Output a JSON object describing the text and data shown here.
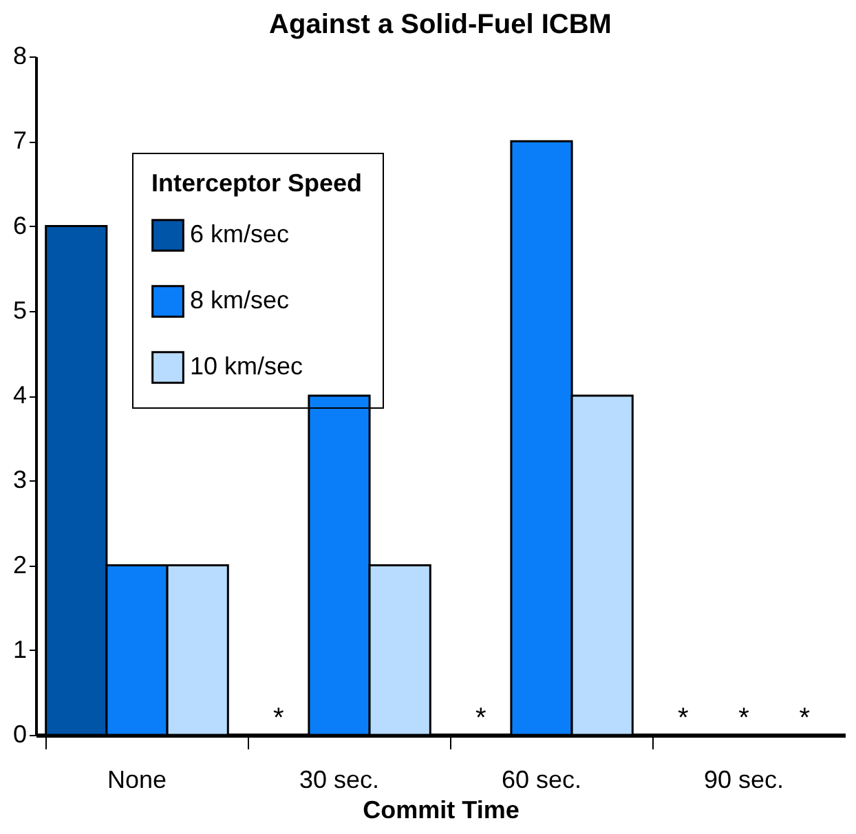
{
  "chart_data": {
    "type": "bar",
    "title": "Against a Solid-Fuel ICBM",
    "xlabel": "Commit Time",
    "legend_title": "Interceptor Speed",
    "legend": "top left",
    "grid": false,
    "categories": [
      "None",
      "30 sec.",
      "60 sec.",
      "90 sec."
    ],
    "ylim": [
      0,
      8
    ],
    "yticks": [
      0,
      1,
      2,
      3,
      4,
      5,
      6,
      7,
      8
    ],
    "series": [
      {
        "name": "6 km/sec",
        "color": "#0055a8",
        "values": [
          6,
          null,
          null,
          null
        ],
        "value_labels": [
          null,
          "*",
          "*",
          "*"
        ]
      },
      {
        "name": "8 km/sec",
        "color": "#0a7ef8",
        "values": [
          2,
          4,
          7,
          null
        ],
        "value_labels": [
          null,
          null,
          null,
          "*"
        ]
      },
      {
        "name": "10 km/sec",
        "color": "#b8dcff",
        "values": [
          2,
          2,
          4,
          null
        ],
        "value_labels": [
          null,
          null,
          null,
          "*"
        ]
      }
    ]
  }
}
